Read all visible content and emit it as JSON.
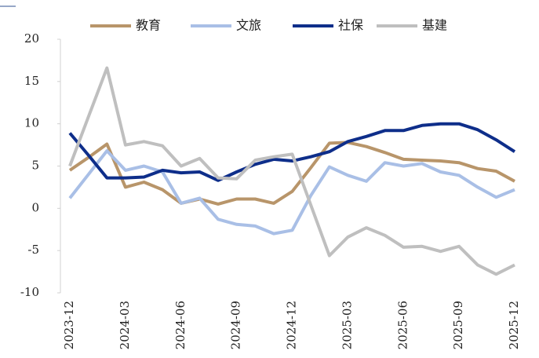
{
  "chart_data": {
    "type": "line",
    "categories": [
      "2023-12",
      null,
      null,
      "2024-03",
      null,
      null,
      "2024-06",
      null,
      null,
      "2024-09",
      null,
      null,
      "2024-12",
      null,
      null,
      "2025-03",
      null,
      null,
      "2025-06",
      null,
      null,
      "2025-09",
      null,
      null,
      "2025-12"
    ],
    "series": [
      {
        "name": "教育",
        "color": "#b8956a",
        "values": [
          4.5,
          6.0,
          7.6,
          2.5,
          3.1,
          2.2,
          0.6,
          1.1,
          0.5,
          1.1,
          1.1,
          0.6,
          2.0,
          4.8,
          7.7,
          7.8,
          7.3,
          6.6,
          5.8,
          5.7,
          5.6,
          5.4,
          4.7,
          4.4,
          3.2
        ]
      },
      {
        "name": "文旅",
        "color": "#a9bfe6",
        "values": [
          1.2,
          4.0,
          6.8,
          4.5,
          5.0,
          4.3,
          0.6,
          1.2,
          -1.3,
          -1.9,
          -2.1,
          -3.0,
          -2.6,
          1.5,
          4.9,
          3.9,
          3.2,
          5.4,
          5.0,
          5.3,
          4.3,
          3.9,
          2.5,
          1.3,
          2.2
        ]
      },
      {
        "name": "社保",
        "color": "#0e2e8a",
        "values": [
          8.9,
          6.3,
          3.6,
          3.6,
          3.7,
          4.5,
          4.2,
          4.3,
          3.3,
          4.3,
          5.2,
          5.8,
          5.6,
          6.1,
          6.7,
          7.9,
          8.5,
          9.2,
          9.2,
          9.8,
          10.0,
          10.0,
          9.3,
          8.1,
          6.7
        ]
      },
      {
        "name": "基建",
        "color": "#bfbfbf",
        "values": [
          5.0,
          10.8,
          16.6,
          7.5,
          7.9,
          7.4,
          5.0,
          5.9,
          3.6,
          3.5,
          5.7,
          6.1,
          6.4,
          0.4,
          -5.6,
          -3.4,
          -2.3,
          -3.2,
          -4.6,
          -4.5,
          -5.1,
          -4.5,
          -6.7,
          -7.8,
          -6.7
        ]
      }
    ],
    "ylim": [
      -10,
      20
    ],
    "yticks": [
      -10,
      -5,
      0,
      5,
      10,
      15,
      20
    ],
    "grid": false,
    "legend": "top"
  }
}
